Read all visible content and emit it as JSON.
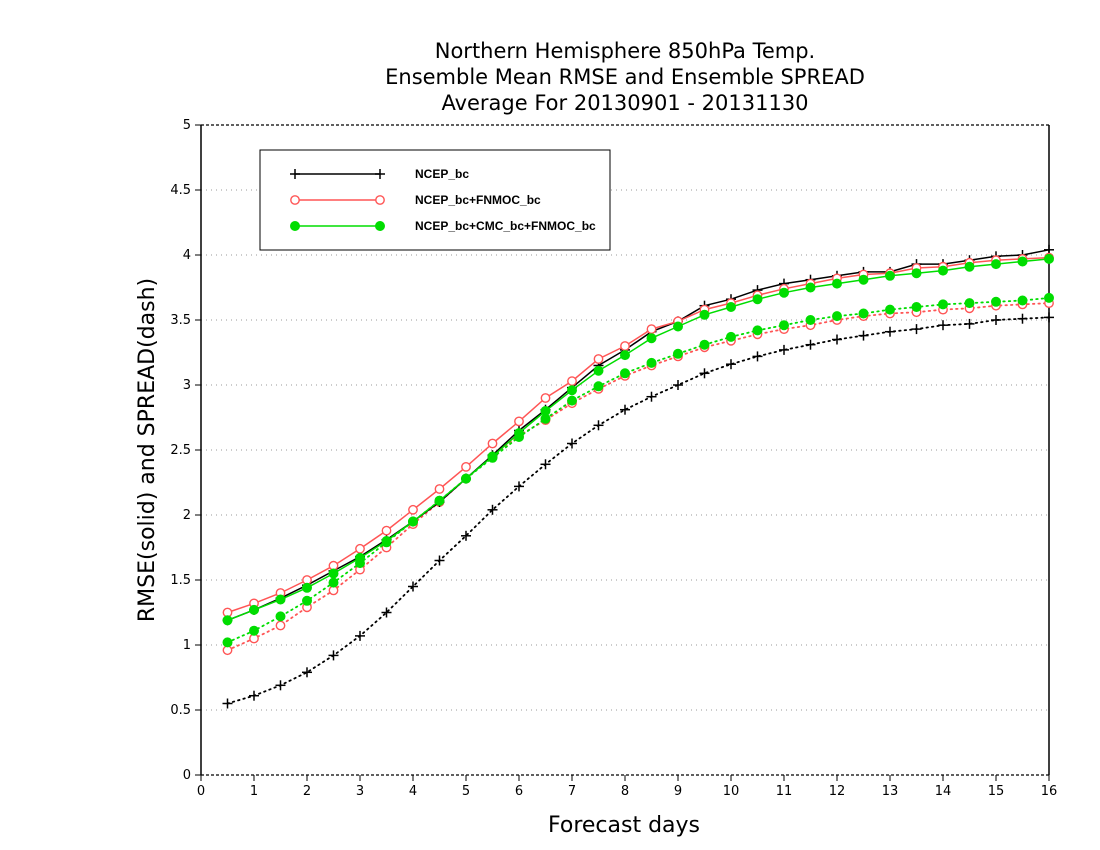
{
  "chart_data": {
    "type": "line",
    "title": [
      "Northern Hemisphere 850hPa Temp.",
      "Ensemble Mean RMSE and Ensemble SPREAD",
      "Average For 20130901 - 20131130"
    ],
    "xlabel": "Forecast days",
    "ylabel": "RMSE(solid) and SPREAD(dash)",
    "xlim": [
      0,
      16
    ],
    "ylim": [
      0,
      5
    ],
    "xticks": [
      0,
      1,
      2,
      3,
      4,
      5,
      6,
      7,
      8,
      9,
      10,
      11,
      12,
      13,
      14,
      15,
      16
    ],
    "xtick_labels": [
      "0",
      "1",
      "2",
      "3",
      "4",
      "5",
      "6",
      "7",
      "8",
      "9",
      "10",
      "11",
      "12",
      "13",
      "14",
      "15",
      "16"
    ],
    "yticks": [
      0,
      0.5,
      1,
      1.5,
      2,
      2.5,
      3,
      3.5,
      4,
      4.5,
      5
    ],
    "ytick_labels": [
      "0",
      "0.5",
      "1",
      "1.5",
      "2",
      "2.5",
      "3",
      "3.5",
      "4",
      "4.5",
      "5"
    ],
    "grid": "horizontal dotted",
    "legend_position": "top-left",
    "x": [
      0.5,
      1,
      1.5,
      2,
      2.5,
      3,
      3.5,
      4,
      4.5,
      5,
      5.5,
      6,
      6.5,
      7,
      7.5,
      8,
      8.5,
      9,
      9.5,
      10,
      10.5,
      11,
      11.5,
      12,
      12.5,
      13,
      13.5,
      14,
      14.5,
      15,
      15.5,
      16
    ],
    "series": [
      {
        "name": "NCEP_bc",
        "kind": "RMSE",
        "line": "solid",
        "color": "#000000",
        "marker": "plus",
        "values": [
          1.19,
          1.27,
          1.36,
          1.46,
          1.57,
          1.68,
          1.81,
          1.95,
          2.1,
          2.28,
          2.46,
          2.65,
          2.81,
          2.98,
          3.15,
          3.27,
          3.41,
          3.49,
          3.61,
          3.66,
          3.73,
          3.78,
          3.81,
          3.84,
          3.87,
          3.87,
          3.93,
          3.93,
          3.96,
          3.99,
          4.0,
          4.04
        ]
      },
      {
        "name": "NCEP_bc+FNMOC_bc",
        "kind": "RMSE",
        "line": "solid",
        "color": "#ff5555",
        "marker": "open-circle",
        "values": [
          1.25,
          1.32,
          1.4,
          1.5,
          1.61,
          1.74,
          1.88,
          2.04,
          2.2,
          2.37,
          2.55,
          2.72,
          2.9,
          3.03,
          3.2,
          3.3,
          3.43,
          3.49,
          3.58,
          3.63,
          3.69,
          3.74,
          3.78,
          3.82,
          3.85,
          3.86,
          3.9,
          3.91,
          3.94,
          3.96,
          3.97,
          3.98
        ]
      },
      {
        "name": "NCEP_bc+CMC_bc+FNMOC_bc",
        "kind": "RMSE",
        "line": "solid",
        "color": "#00dd00",
        "marker": "filled-circle",
        "values": [
          1.19,
          1.27,
          1.35,
          1.44,
          1.55,
          1.67,
          1.8,
          1.95,
          2.11,
          2.28,
          2.45,
          2.63,
          2.8,
          2.96,
          3.11,
          3.23,
          3.36,
          3.45,
          3.54,
          3.6,
          3.66,
          3.71,
          3.75,
          3.78,
          3.81,
          3.84,
          3.86,
          3.88,
          3.91,
          3.93,
          3.95,
          3.97
        ]
      },
      {
        "name": "NCEP_bc",
        "kind": "SPREAD",
        "line": "dotted",
        "color": "#000000",
        "marker": "plus",
        "values": [
          0.55,
          0.61,
          0.69,
          0.79,
          0.92,
          1.07,
          1.25,
          1.45,
          1.65,
          1.84,
          2.04,
          2.22,
          2.39,
          2.55,
          2.69,
          2.81,
          2.91,
          3.0,
          3.09,
          3.16,
          3.22,
          3.27,
          3.31,
          3.35,
          3.38,
          3.41,
          3.43,
          3.46,
          3.47,
          3.5,
          3.51,
          3.52
        ]
      },
      {
        "name": "NCEP_bc+FNMOC_bc",
        "kind": "SPREAD",
        "line": "dotted",
        "color": "#ff5555",
        "marker": "open-circle",
        "values": [
          0.96,
          1.05,
          1.15,
          1.29,
          1.42,
          1.58,
          1.75,
          1.93,
          2.1,
          2.28,
          2.45,
          2.61,
          2.73,
          2.86,
          2.97,
          3.07,
          3.15,
          3.22,
          3.29,
          3.34,
          3.39,
          3.43,
          3.46,
          3.5,
          3.53,
          3.55,
          3.56,
          3.58,
          3.59,
          3.61,
          3.62,
          3.63
        ]
      },
      {
        "name": "NCEP_bc+CMC_bc+FNMOC_bc",
        "kind": "SPREAD",
        "line": "dotted",
        "color": "#00dd00",
        "marker": "filled-circle",
        "values": [
          1.02,
          1.11,
          1.22,
          1.34,
          1.48,
          1.63,
          1.79,
          1.95,
          2.11,
          2.28,
          2.44,
          2.6,
          2.74,
          2.88,
          2.99,
          3.09,
          3.17,
          3.24,
          3.31,
          3.37,
          3.42,
          3.46,
          3.5,
          3.53,
          3.55,
          3.58,
          3.6,
          3.62,
          3.63,
          3.64,
          3.65,
          3.67
        ]
      }
    ],
    "legend": [
      {
        "label": "NCEP_bc",
        "color": "#000000",
        "marker": "plus"
      },
      {
        "label": "NCEP_bc+FNMOC_bc",
        "color": "#ff5555",
        "marker": "open-circle"
      },
      {
        "label": "NCEP_bc+CMC_bc+FNMOC_bc",
        "color": "#00dd00",
        "marker": "filled-circle"
      }
    ]
  }
}
